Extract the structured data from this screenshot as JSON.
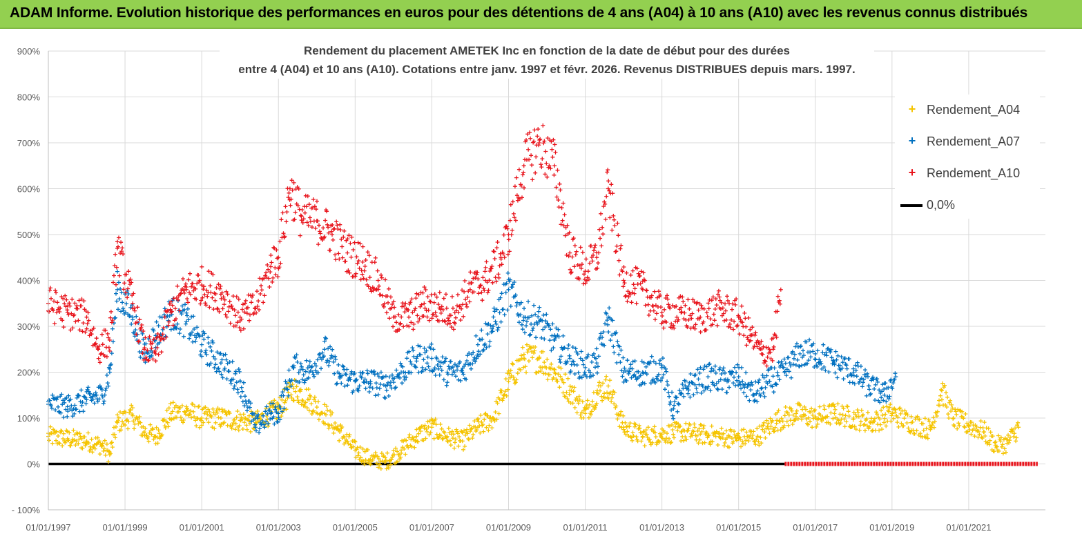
{
  "banner": {
    "title": "ADAM Informe. Evolution historique des performances en euros pour des détentions de 4 ans (A04) à 10 ans (A10) avec les revenus connus distribués"
  },
  "chart_data": {
    "type": "scatter",
    "title_line1": "Rendement du placement AMETEK Inc en fonction de la date de début pour des durées",
    "title_line2": "entre 4 (A04) et 10 ans (A10).  Cotations entre janv. 1997 et févr. 2026. Revenus  DISTRIBUES depuis mars. 1997.",
    "xlabel": "",
    "ylabel": "",
    "xlim": [
      1997.0,
      2023.0
    ],
    "ylim": [
      -100,
      900
    ],
    "y_ticks": [
      -100,
      0,
      100,
      200,
      300,
      400,
      500,
      600,
      700,
      800,
      900
    ],
    "y_tick_labels": [
      "- 100%",
      "0%",
      "100%",
      "200%",
      "300%",
      "400%",
      "500%",
      "600%",
      "700%",
      "800%",
      "900%"
    ],
    "x_ticks": [
      1997,
      1999,
      2001,
      2003,
      2005,
      2007,
      2009,
      2011,
      2013,
      2015,
      2017,
      2019,
      2021
    ],
    "x_tick_labels": [
      "01/01/1997",
      "01/01/1999",
      "01/01/2001",
      "01/01/2003",
      "01/01/2005",
      "01/01/2007",
      "01/01/2009",
      "01/01/2011",
      "01/01/2013",
      "01/01/2015",
      "01/01/2017",
      "01/01/2019",
      "01/01/2021"
    ],
    "legend_position": "top-right",
    "series": [
      {
        "name": "Rendement_A04",
        "color": "#f5c400",
        "marker": "+",
        "x": [
          1997.0,
          1997.5,
          1998.0,
          1998.4,
          1998.6,
          1998.8,
          1999.2,
          1999.5,
          1999.8,
          2000.2,
          2000.6,
          2001.0,
          2001.5,
          2002.0,
          2002.4,
          2002.8,
          2003.0,
          2003.4,
          2003.8,
          2004.2,
          2004.6,
          2005.0,
          2005.4,
          2005.8,
          2006.2,
          2006.6,
          2007.0,
          2007.4,
          2007.8,
          2008.2,
          2008.6,
          2009.0,
          2009.4,
          2009.8,
          2010.2,
          2010.6,
          2011.0,
          2011.3,
          2011.6,
          2012.0,
          2012.5,
          2013.0,
          2013.5,
          2014.0,
          2014.5,
          2015.0,
          2015.5,
          2016.0,
          2016.5,
          2017.0,
          2017.5,
          2018.0,
          2018.5,
          2019.0,
          2019.5,
          2020.0,
          2020.3,
          2020.6,
          2021.0,
          2021.4,
          2021.7,
          2022.0,
          2022.3
        ],
        "y": [
          60,
          55,
          50,
          40,
          20,
          90,
          105,
          70,
          60,
          110,
          115,
          100,
          100,
          95,
          90,
          110,
          120,
          165,
          140,
          110,
          70,
          30,
          10,
          5,
          30,
          60,
          80,
          60,
          50,
          80,
          100,
          180,
          230,
          230,
          200,
          160,
          110,
          155,
          170,
          80,
          60,
          65,
          70,
          65,
          60,
          55,
          60,
          95,
          110,
          100,
          110,
          100,
          90,
          110,
          90,
          75,
          160,
          100,
          85,
          70,
          40,
          45,
          80
        ]
      },
      {
        "name": "Rendement_A07",
        "color": "#0070c0",
        "marker": "+",
        "x": [
          1997.0,
          1997.5,
          1998.0,
          1998.4,
          1998.6,
          1998.8,
          1999.2,
          1999.5,
          1999.8,
          2000.2,
          2000.6,
          2001.0,
          2001.5,
          2002.0,
          2002.4,
          2002.8,
          2003.0,
          2003.4,
          2003.8,
          2004.2,
          2004.6,
          2005.0,
          2005.4,
          2005.8,
          2006.2,
          2006.6,
          2007.0,
          2007.4,
          2007.8,
          2008.2,
          2008.6,
          2009.0,
          2009.4,
          2009.8,
          2010.2,
          2010.6,
          2011.0,
          2011.3,
          2011.6,
          2012.0,
          2012.5,
          2013.0,
          2013.3,
          2013.7,
          2014.2,
          2014.7,
          2015.0,
          2015.4,
          2015.8,
          2016.2,
          2016.6,
          2017.0,
          2017.5,
          2018.0,
          2018.4,
          2018.8,
          2019.1
        ],
        "y": [
          130,
          125,
          140,
          150,
          200,
          380,
          320,
          240,
          280,
          330,
          310,
          260,
          220,
          180,
          80,
          110,
          110,
          210,
          200,
          250,
          190,
          180,
          180,
          170,
          200,
          230,
          230,
          200,
          200,
          260,
          300,
          380,
          320,
          310,
          270,
          230,
          210,
          220,
          320,
          200,
          200,
          210,
          120,
          170,
          190,
          180,
          190,
          150,
          180,
          200,
          240,
          240,
          220,
          200,
          170,
          150,
          190
        ]
      },
      {
        "name": "Rendement_A10",
        "color": "#e8141c",
        "marker": "+",
        "x": [
          1997.0,
          1997.5,
          1998.0,
          1998.3,
          1998.6,
          1998.8,
          1999.2,
          1999.5,
          1999.8,
          2000.2,
          2000.6,
          2001.0,
          2001.5,
          2002.0,
          2002.4,
          2002.8,
          2003.0,
          2003.3,
          2003.6,
          2004.0,
          2004.4,
          2004.8,
          2005.2,
          2005.6,
          2006.0,
          2006.4,
          2006.8,
          2007.2,
          2007.6,
          2008.0,
          2008.4,
          2008.8,
          2009.0,
          2009.4,
          2009.8,
          2010.2,
          2010.6,
          2011.0,
          2011.3,
          2011.6,
          2012.0,
          2012.5,
          2013.0,
          2013.5,
          2014.0,
          2014.5,
          2015.0,
          2015.3,
          2015.6,
          2015.9,
          2016.1
        ],
        "y": [
          350,
          330,
          320,
          250,
          270,
          470,
          350,
          250,
          240,
          330,
          380,
          390,
          370,
          320,
          340,
          430,
          450,
          600,
          540,
          530,
          500,
          460,
          440,
          400,
          320,
          320,
          350,
          340,
          330,
          380,
          400,
          450,
          500,
          650,
          700,
          650,
          460,
          420,
          450,
          600,
          400,
          380,
          330,
          330,
          320,
          340,
          320,
          280,
          240,
          250,
          380
        ]
      },
      {
        "name": "0,0%",
        "color": "#000000",
        "type": "line",
        "x": [
          1997.0,
          2016.2
        ],
        "y": [
          0,
          0
        ]
      }
    ],
    "zero_red_segment": {
      "color": "#e8141c",
      "x": [
        2016.2,
        2022.8
      ],
      "y": [
        0,
        0
      ]
    }
  }
}
